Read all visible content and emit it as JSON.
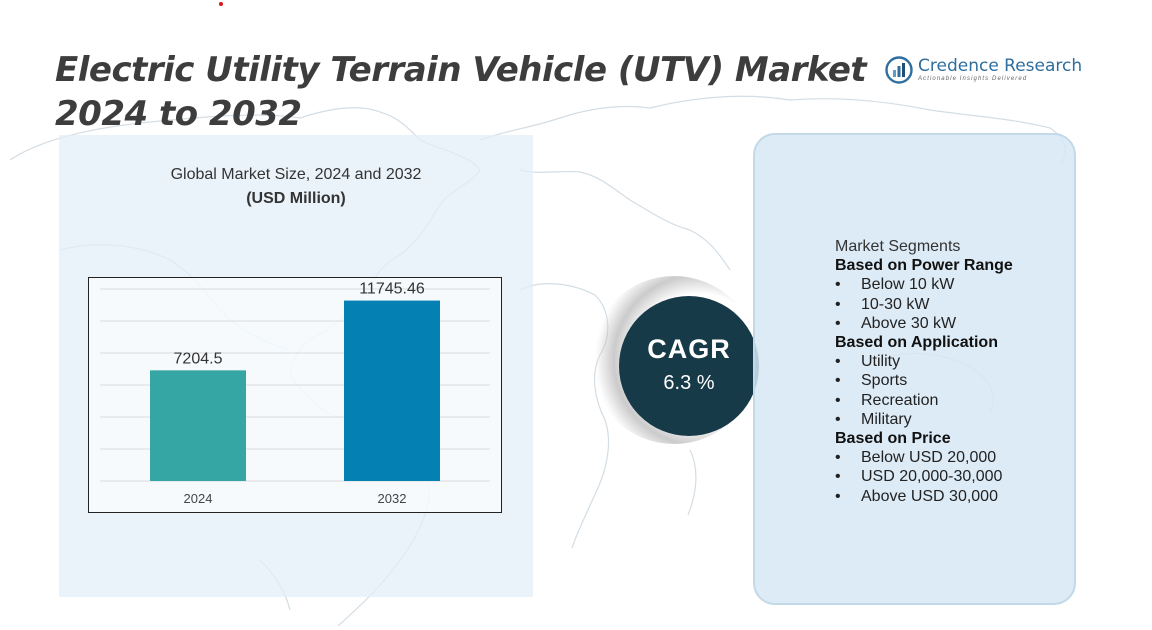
{
  "title": "Electric Utility Terrain Vehicle (UTV) Market 2024 to 2032",
  "logo": {
    "name": "Credence Research",
    "tagline": "Actionable Insights Delivered"
  },
  "colors": {
    "bar_2024": "#35a6a4",
    "bar_2032": "#0480b2",
    "cagr_circle": "#173a48",
    "title": "#3d3d3d"
  },
  "chart_title": {
    "line1": "Global Market Size,  2024 and 2032",
    "line2": "(USD Million)"
  },
  "chart_data": {
    "type": "bar",
    "categories": [
      "2024",
      "2032"
    ],
    "values": [
      7204.5,
      11745.46
    ],
    "value_labels": [
      "7204.5",
      "11745.46"
    ],
    "title": "Global Market Size,  2024 and 2032",
    "ylabel": "(USD Million)",
    "xlabel": "",
    "ylim": [
      0,
      12500
    ],
    "grid": true,
    "legend": "none"
  },
  "cagr": {
    "label": "CAGR",
    "value": "6.3 %"
  },
  "segments": {
    "heading": "Market Segments",
    "groups": [
      {
        "title": "Based on Power Range",
        "items": [
          "Below 10 kW",
          "10-30 kW",
          "Above 30 kW"
        ]
      },
      {
        "title": "Based on Application",
        "items": [
          "Utility",
          "Sports",
          "Recreation",
          "Military"
        ]
      },
      {
        "title": "Based on Price",
        "items": [
          "Below USD 20,000",
          "USD 20,000-30,000",
          "Above USD 30,000"
        ]
      }
    ]
  },
  "bullet_glyph": "•"
}
